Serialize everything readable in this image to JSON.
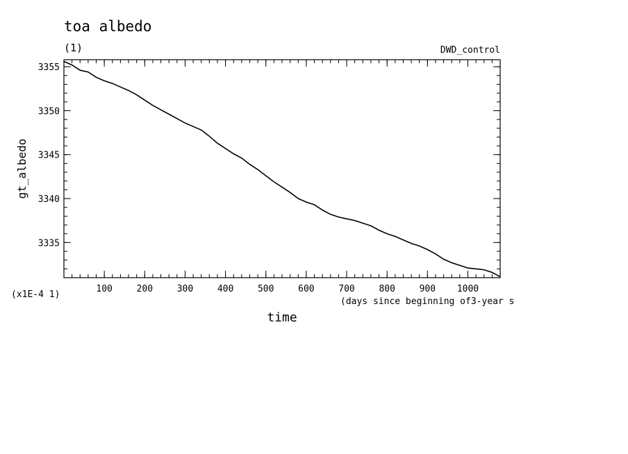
{
  "chart_data": {
    "type": "line",
    "title": "toa albedo",
    "subtitle": "(1)",
    "run_label": "DWD_control",
    "ylabel": "gt_albedo",
    "xlabel": "time",
    "x_units": "(days since beginning of3-year s",
    "y_scale_note": "(x1E-4 1)",
    "xlim": [
      0,
      1080
    ],
    "ylim": [
      3331,
      3355.8
    ],
    "x_ticks": [
      100,
      200,
      300,
      400,
      500,
      600,
      700,
      800,
      900,
      1000
    ],
    "y_ticks": [
      3335,
      3340,
      3345,
      3350,
      3355
    ],
    "grid": false,
    "colors": {
      "line": "#000000",
      "axes": "#000000",
      "background": "#ffffff"
    },
    "series": [
      {
        "x": [
          0,
          20,
          40,
          60,
          80,
          100,
          120,
          140,
          160,
          180,
          200,
          220,
          240,
          260,
          280,
          300,
          320,
          340,
          360,
          380,
          400,
          420,
          440,
          460,
          480,
          500,
          520,
          540,
          560,
          580,
          600,
          620,
          640,
          660,
          680,
          700,
          720,
          740,
          760,
          780,
          800,
          820,
          840,
          860,
          880,
          900,
          920,
          940,
          960,
          980,
          1000,
          1020,
          1040,
          1060,
          1080
        ],
        "y": [
          3355.6,
          3355.2,
          3354.6,
          3354.4,
          3353.8,
          3353.4,
          3353.1,
          3352.7,
          3352.3,
          3351.8,
          3351.2,
          3350.6,
          3350.1,
          3349.6,
          3349.1,
          3348.6,
          3348.2,
          3347.8,
          3347.1,
          3346.3,
          3345.7,
          3345.1,
          3344.6,
          3343.9,
          3343.3,
          3342.6,
          3341.9,
          3341.3,
          3340.7,
          3340.0,
          3339.6,
          3339.3,
          3338.7,
          3338.2,
          3337.9,
          3337.7,
          3337.5,
          3337.2,
          3336.9,
          3336.4,
          3336.0,
          3335.7,
          3335.3,
          3334.9,
          3334.6,
          3334.2,
          3333.7,
          3333.1,
          3332.7,
          3332.4,
          3332.1,
          3332.0,
          3331.9,
          3331.6,
          3331.1
        ]
      }
    ]
  }
}
